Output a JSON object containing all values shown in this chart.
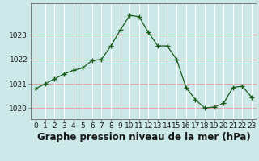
{
  "x": [
    0,
    1,
    2,
    3,
    4,
    5,
    6,
    7,
    8,
    9,
    10,
    11,
    12,
    13,
    14,
    15,
    16,
    17,
    18,
    19,
    20,
    21,
    22,
    23
  ],
  "y": [
    1020.8,
    1021.0,
    1021.2,
    1021.4,
    1021.55,
    1021.65,
    1021.95,
    1022.0,
    1022.55,
    1023.2,
    1023.8,
    1023.75,
    1023.1,
    1022.55,
    1022.55,
    1022.0,
    1020.85,
    1020.35,
    1020.0,
    1020.05,
    1020.2,
    1020.85,
    1020.9,
    1020.45
  ],
  "title": "Graphe pression niveau de la mer (hPa)",
  "line_color": "#1a5c1a",
  "marker_color": "#1a5c1a",
  "bg_color": "#cce8e8",
  "hgrid_color": "#e8a0a0",
  "vgrid_color": "#ffffff",
  "border_color": "#777777",
  "ylabel_ticks": [
    1020,
    1021,
    1022,
    1023
  ],
  "ylim": [
    1019.55,
    1024.3
  ],
  "xlim": [
    -0.5,
    23.5
  ],
  "title_fontsize": 8.5,
  "tick_fontsize": 6.5
}
